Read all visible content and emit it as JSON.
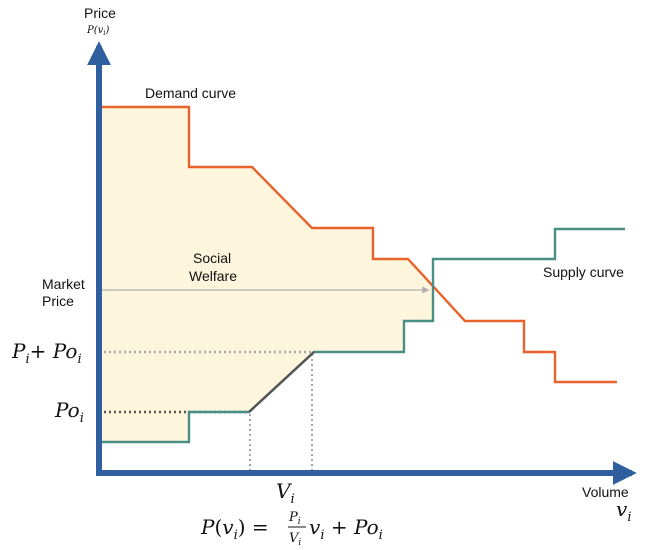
{
  "axes": {
    "y_title": "Price",
    "y_sub": "P(v",
    "y_sub_idx": "i",
    "x_title": "Volume",
    "x_sub": "v",
    "x_sub_idx": "i"
  },
  "labels": {
    "demand": "Demand curve",
    "supply": "Supply curve",
    "social_line1": "Social",
    "social_line2": "Welfare",
    "market_line1": "Market",
    "market_line2": "Price"
  },
  "ticks": {
    "pi_poi": {
      "a": "P",
      "ai": "i",
      "plus": "+ ",
      "b": "Po",
      "bi": "i"
    },
    "poi": {
      "b": "Po",
      "bi": "i"
    },
    "vi": {
      "a": "V",
      "ai": "i"
    }
  },
  "formula": {
    "lhs": "P(v",
    "lhs_i": "i",
    "lhs_close": ") = ",
    "num": "P",
    "num_i": "i",
    "den": "V",
    "den_i": "i",
    "v": "v",
    "v_i": "i",
    "plus": " + Po",
    "po_i": "i"
  },
  "colors": {
    "axis": "#2f5f9f",
    "demand": "#e8622b",
    "supply": "#4a8f86",
    "welfare_fill": "#fdf5dc",
    "market_arrow": "#b0b0b0",
    "dotted": "#a8a8a8"
  }
}
